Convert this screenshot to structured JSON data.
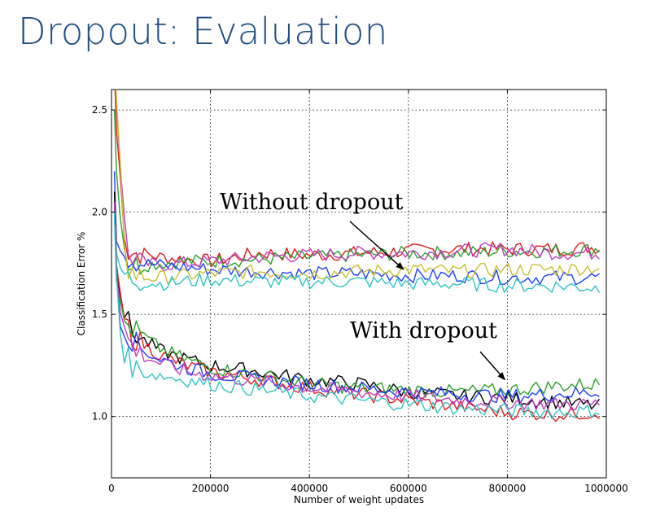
{
  "slide": {
    "title": "Dropout: Evaluation"
  },
  "chart_data": {
    "type": "line",
    "xlabel": "Number of weight updates",
    "ylabel": "Classification Error %",
    "xlim": [
      0,
      1000000
    ],
    "ylim": [
      0.7,
      2.6
    ],
    "xticks": [
      0,
      200000,
      400000,
      600000,
      800000,
      1000000
    ],
    "xtick_labels": [
      "0",
      "200000",
      "400000",
      "600000",
      "800000",
      "1000000"
    ],
    "yticks": [
      1.0,
      1.5,
      2.0,
      2.5
    ],
    "ytick_labels": [
      "1.0",
      "1.5",
      "2.0",
      "2.5"
    ],
    "grid": true,
    "annotations": [
      {
        "text": "Without dropout",
        "points_to": [
          590000,
          1.72
        ]
      },
      {
        "text": "With dropout",
        "points_to": [
          795000,
          1.18
        ]
      }
    ],
    "series": [
      {
        "group": "without",
        "color": "#e41a1c",
        "x": [
          10000,
          30000,
          60000,
          100000,
          150000,
          200000,
          300000,
          400000,
          500000,
          600000,
          700000,
          800000,
          900000,
          990000
        ],
        "values": [
          2.4,
          1.8,
          1.8,
          1.78,
          1.77,
          1.76,
          1.8,
          1.79,
          1.8,
          1.81,
          1.82,
          1.82,
          1.82,
          1.83
        ]
      },
      {
        "group": "without",
        "color": "#2ca02c",
        "x": [
          10000,
          30000,
          60000,
          100000,
          150000,
          200000,
          300000,
          400000,
          500000,
          600000,
          700000,
          800000,
          900000,
          990000
        ],
        "values": [
          2.2,
          1.75,
          1.74,
          1.75,
          1.76,
          1.76,
          1.77,
          1.78,
          1.79,
          1.8,
          1.8,
          1.81,
          1.81,
          1.82
        ]
      },
      {
        "group": "without",
        "color": "#bf3fbf",
        "x": [
          10000,
          30000,
          60000,
          100000,
          150000,
          200000,
          300000,
          400000,
          500000,
          600000,
          700000,
          800000,
          900000,
          990000
        ],
        "values": [
          2.55,
          1.8,
          1.75,
          1.74,
          1.75,
          1.76,
          1.78,
          1.79,
          1.8,
          1.8,
          1.81,
          1.82,
          1.8,
          1.8
        ]
      },
      {
        "group": "without",
        "color": "#1f3fff",
        "x": [
          10000,
          30000,
          60000,
          100000,
          150000,
          200000,
          300000,
          400000,
          500000,
          600000,
          700000,
          800000,
          900000,
          990000
        ],
        "values": [
          1.9,
          1.78,
          1.75,
          1.74,
          1.73,
          1.72,
          1.71,
          1.7,
          1.7,
          1.69,
          1.69,
          1.68,
          1.68,
          1.68
        ]
      },
      {
        "group": "without",
        "color": "#c8c030",
        "x": [
          10000,
          30000,
          60000,
          100000,
          150000,
          200000,
          300000,
          400000,
          500000,
          600000,
          700000,
          800000,
          900000,
          990000
        ],
        "values": [
          2.5,
          1.72,
          1.68,
          1.68,
          1.69,
          1.7,
          1.71,
          1.7,
          1.71,
          1.72,
          1.71,
          1.72,
          1.72,
          1.73
        ]
      },
      {
        "group": "without",
        "color": "#2ec4c4",
        "x": [
          10000,
          30000,
          60000,
          100000,
          150000,
          200000,
          300000,
          400000,
          500000,
          600000,
          700000,
          800000,
          900000,
          990000
        ],
        "values": [
          1.75,
          1.68,
          1.66,
          1.65,
          1.66,
          1.67,
          1.66,
          1.66,
          1.66,
          1.65,
          1.65,
          1.64,
          1.64,
          1.63
        ]
      },
      {
        "group": "with",
        "color": "#000000",
        "x": [
          10000,
          20000,
          40000,
          60000,
          100000,
          150000,
          200000,
          300000,
          400000,
          500000,
          600000,
          700000,
          800000,
          900000,
          990000
        ],
        "values": [
          1.8,
          1.55,
          1.42,
          1.38,
          1.32,
          1.28,
          1.25,
          1.22,
          1.18,
          1.16,
          1.12,
          1.1,
          1.09,
          1.07,
          1.05
        ]
      },
      {
        "group": "with",
        "color": "#e41a1c",
        "x": [
          10000,
          20000,
          40000,
          60000,
          100000,
          150000,
          200000,
          300000,
          400000,
          500000,
          600000,
          700000,
          800000,
          900000,
          990000
        ],
        "values": [
          1.75,
          1.5,
          1.4,
          1.36,
          1.3,
          1.25,
          1.22,
          1.18,
          1.14,
          1.11,
          1.08,
          1.05,
          1.02,
          1.01,
          1.02
        ]
      },
      {
        "group": "with",
        "color": "#2ca02c",
        "x": [
          10000,
          20000,
          40000,
          60000,
          100000,
          150000,
          200000,
          300000,
          400000,
          500000,
          600000,
          700000,
          800000,
          900000,
          990000
        ],
        "values": [
          1.7,
          1.48,
          1.43,
          1.4,
          1.33,
          1.28,
          1.24,
          1.2,
          1.16,
          1.14,
          1.13,
          1.12,
          1.13,
          1.15,
          1.16
        ]
      },
      {
        "group": "with",
        "color": "#1f3fff",
        "x": [
          10000,
          20000,
          40000,
          60000,
          100000,
          150000,
          200000,
          300000,
          400000,
          500000,
          600000,
          700000,
          800000,
          900000,
          990000
        ],
        "values": [
          1.7,
          1.45,
          1.38,
          1.33,
          1.28,
          1.24,
          1.21,
          1.18,
          1.16,
          1.14,
          1.12,
          1.11,
          1.1,
          1.11,
          1.12
        ]
      },
      {
        "group": "with",
        "color": "#bf3fbf",
        "x": [
          10000,
          20000,
          40000,
          60000,
          100000,
          150000,
          200000,
          300000,
          400000,
          500000,
          600000,
          700000,
          800000,
          900000,
          990000
        ],
        "values": [
          1.75,
          1.45,
          1.35,
          1.3,
          1.26,
          1.22,
          1.2,
          1.17,
          1.14,
          1.12,
          1.1,
          1.08,
          1.07,
          1.06,
          1.06
        ]
      },
      {
        "group": "with",
        "color": "#2ec4c4",
        "x": [
          10000,
          20000,
          40000,
          60000,
          100000,
          150000,
          200000,
          300000,
          400000,
          500000,
          600000,
          700000,
          800000,
          900000,
          990000
        ],
        "values": [
          1.7,
          1.35,
          1.25,
          1.22,
          1.2,
          1.18,
          1.16,
          1.13,
          1.1,
          1.08,
          1.06,
          1.04,
          1.03,
          1.02,
          1.03
        ]
      }
    ]
  }
}
